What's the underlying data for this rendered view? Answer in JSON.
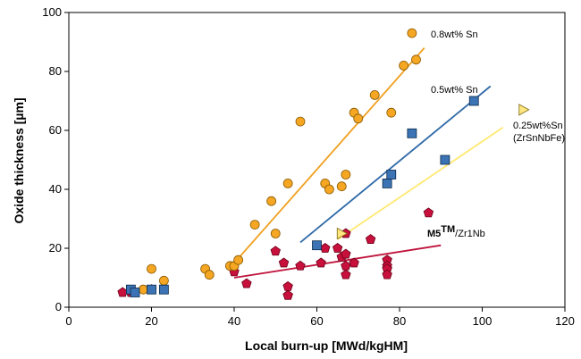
{
  "chart_data": {
    "type": "scatter",
    "xlabel": "Local burn-up [MWd/kgHM]",
    "ylabel": "Oxide thickness [µm]",
    "xlim": [
      0,
      120
    ],
    "ylim": [
      0,
      100
    ],
    "xticks": [
      "0",
      "20",
      "40",
      "60",
      "80",
      "100",
      "120"
    ],
    "yticks": [
      "0",
      "20",
      "40",
      "60",
      "80",
      "100"
    ],
    "grid": false,
    "annotations": {
      "sn08": "0.8wt% Sn",
      "sn05": "0.5wt% Sn",
      "sn025_a": "0.25wt%Sn",
      "sn025_b": "(ZrSnNbFe)",
      "m5_main": "M5",
      "m5_sup": "TM",
      "m5_rest": "/Zr1Nb"
    },
    "series": [
      {
        "key": "sn08",
        "marker": "circle",
        "color": "#f5a623",
        "stroke": "#8a5a00",
        "points": [
          [
            18,
            6
          ],
          [
            20,
            13
          ],
          [
            23,
            9
          ],
          [
            33,
            13
          ],
          [
            34,
            11
          ],
          [
            39,
            14
          ],
          [
            40,
            14
          ],
          [
            41,
            16
          ],
          [
            45,
            28
          ],
          [
            49,
            36
          ],
          [
            50,
            25
          ],
          [
            53,
            42
          ],
          [
            56,
            63
          ],
          [
            62,
            42
          ],
          [
            63,
            40
          ],
          [
            66,
            41
          ],
          [
            67,
            45
          ],
          [
            69,
            66
          ],
          [
            70,
            64
          ],
          [
            74,
            72
          ],
          [
            78,
            66
          ],
          [
            81,
            82
          ],
          [
            83,
            93
          ],
          [
            84,
            84
          ]
        ],
        "fit": [
          [
            40,
            15
          ],
          [
            86,
            88
          ]
        ],
        "fit_color": "#f0a020"
      },
      {
        "key": "sn05",
        "marker": "square",
        "color": "#3b73b5",
        "stroke": "#0a2a4a",
        "points": [
          [
            15,
            6
          ],
          [
            16,
            5
          ],
          [
            20,
            6
          ],
          [
            23,
            6
          ],
          [
            60,
            21
          ],
          [
            77,
            42
          ],
          [
            78,
            45
          ],
          [
            83,
            59
          ],
          [
            91,
            50
          ],
          [
            98,
            70
          ]
        ],
        "fit": [
          [
            56,
            22
          ],
          [
            102,
            75
          ]
        ],
        "fit_color": "#2f6aa8"
      },
      {
        "key": "sn025",
        "marker": "triangle-right",
        "color": "#ffe680",
        "stroke": "#7a6a10",
        "points": [
          [
            66,
            25
          ],
          [
            110,
            67
          ]
        ],
        "fit": [
          [
            65,
            23
          ],
          [
            105,
            61
          ]
        ],
        "fit_color": "#ffe970"
      },
      {
        "key": "m5",
        "marker": "pentagon",
        "color": "#c8103c",
        "stroke": "#6a0018",
        "points": [
          [
            13,
            5
          ],
          [
            15,
            5
          ],
          [
            16,
            5
          ],
          [
            20,
            6
          ],
          [
            40,
            12
          ],
          [
            43,
            8
          ],
          [
            50,
            19
          ],
          [
            52,
            15
          ],
          [
            53,
            7
          ],
          [
            53,
            4
          ],
          [
            53,
            4
          ],
          [
            56,
            14
          ],
          [
            61,
            15
          ],
          [
            62,
            20
          ],
          [
            65,
            20
          ],
          [
            66,
            17
          ],
          [
            67,
            18
          ],
          [
            67,
            14
          ],
          [
            67,
            11
          ],
          [
            67,
            25
          ],
          [
            69,
            15
          ],
          [
            73,
            23
          ],
          [
            77,
            16
          ],
          [
            77,
            14
          ],
          [
            77,
            13
          ],
          [
            77,
            11
          ],
          [
            87,
            32
          ]
        ],
        "fit": [
          [
            40,
            10
          ],
          [
            90,
            21
          ]
        ],
        "fit_color": "#c0143c"
      }
    ]
  }
}
